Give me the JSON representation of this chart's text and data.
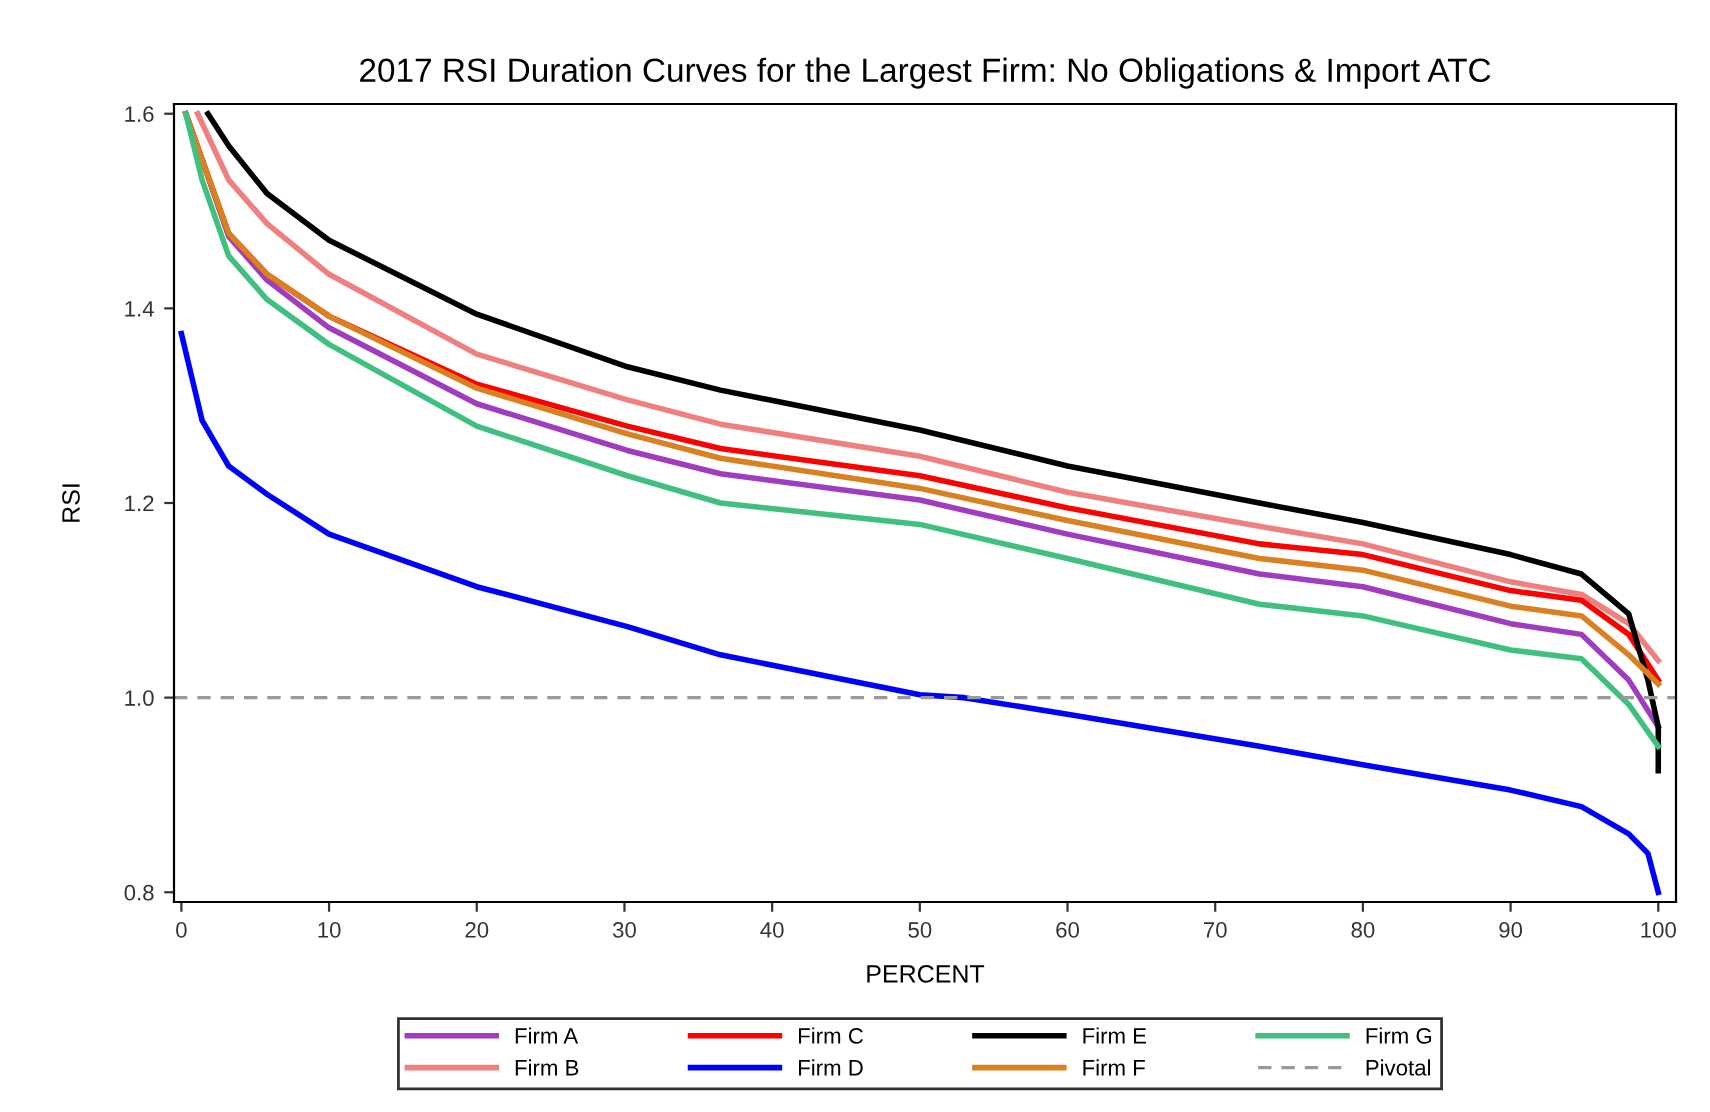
{
  "chart_data": {
    "type": "line",
    "title": "2017 RSI Duration Curves for the Largest Firm: No Obligations & Import ATC",
    "xlabel": "PERCENT",
    "ylabel": "RSI",
    "xlim": [
      -0.5,
      101.2
    ],
    "ylim": [
      0.79,
      1.61
    ],
    "xticks": [
      0,
      10,
      20,
      30,
      40,
      50,
      60,
      70,
      80,
      90,
      100
    ],
    "yticks": [
      0.8,
      {
        "value": 1.0,
        "label": "1.0"
      },
      1.2,
      1.4,
      1.6
    ],
    "grid": false,
    "legend": "bottom",
    "line_style": "solid",
    "marker": "none",
    "series": [
      {
        "name": "Firm A",
        "color": "#a03cc0",
        "x": [
          0.3,
          1.4,
          3.2,
          5.8,
          10,
          20,
          30.2,
          36.5,
          50,
          60,
          73,
          80,
          90,
          94.8,
          98,
          100
        ],
        "values": [
          1.6,
          1.553,
          1.474,
          1.429,
          1.38,
          1.302,
          1.254,
          1.23,
          1.203,
          1.168,
          1.127,
          1.114,
          1.076,
          1.065,
          1.018,
          0.97
        ]
      },
      {
        "name": "Firm B",
        "color": "#f08080",
        "x": [
          1.1,
          3.2,
          5.8,
          10,
          20,
          30.2,
          36.5,
          50,
          60,
          73,
          80,
          90,
          94.8,
          98,
          100
        ],
        "values": [
          1.6,
          1.532,
          1.487,
          1.435,
          1.353,
          1.306,
          1.281,
          1.248,
          1.211,
          1.176,
          1.158,
          1.119,
          1.106,
          1.076,
          1.038
        ]
      },
      {
        "name": "Firm C",
        "color": "#ff0000",
        "x": [
          0.3,
          1.4,
          3.2,
          5.8,
          10,
          20,
          30.2,
          36.5,
          50,
          60,
          73,
          80,
          90,
          94.8,
          98,
          100
        ],
        "values": [
          1.6,
          1.553,
          1.477,
          1.435,
          1.392,
          1.322,
          1.279,
          1.256,
          1.228,
          1.195,
          1.158,
          1.147,
          1.11,
          1.1,
          1.065,
          1.018
        ]
      },
      {
        "name": "Firm D",
        "color": "#0000ff",
        "x": [
          0,
          1.4,
          3.2,
          5.8,
          10,
          20,
          30.2,
          36.5,
          50,
          53,
          60,
          73,
          80,
          90,
          94.8,
          98,
          99.3,
          100
        ],
        "values": [
          1.374,
          1.285,
          1.238,
          1.209,
          1.168,
          1.114,
          1.073,
          1.044,
          1.003,
          1.0,
          0.983,
          0.95,
          0.931,
          0.905,
          0.888,
          0.86,
          0.84,
          0.8
        ]
      },
      {
        "name": "Firm E",
        "color": "#000000",
        "x": [
          1.8,
          3.2,
          5.8,
          10,
          20,
          30.2,
          36.5,
          50,
          60,
          73,
          80,
          90,
          94.8,
          98,
          99.3,
          100,
          100
        ],
        "values": [
          1.6,
          1.567,
          1.518,
          1.47,
          1.394,
          1.34,
          1.316,
          1.275,
          1.238,
          1.2,
          1.18,
          1.147,
          1.127,
          1.086,
          1.018,
          0.97,
          0.925
        ]
      },
      {
        "name": "Firm F",
        "color": "#d98020",
        "x": [
          0.3,
          1.4,
          3.2,
          5.8,
          10,
          20,
          30.2,
          36.5,
          50,
          60,
          73,
          80,
          90,
          94.8,
          98,
          100
        ],
        "values": [
          1.6,
          1.553,
          1.477,
          1.435,
          1.392,
          1.318,
          1.271,
          1.246,
          1.215,
          1.182,
          1.143,
          1.131,
          1.094,
          1.084,
          1.044,
          1.014
        ]
      },
      {
        "name": "Firm G",
        "color": "#40c080",
        "x": [
          0.3,
          1.4,
          3.2,
          5.8,
          10,
          20,
          30.2,
          36.5,
          50,
          60,
          73,
          80,
          90,
          94.8,
          98,
          100
        ],
        "values": [
          1.6,
          1.532,
          1.454,
          1.409,
          1.363,
          1.279,
          1.228,
          1.2,
          1.178,
          1.143,
          1.096,
          1.084,
          1.049,
          1.04,
          0.993,
          0.95
        ]
      }
    ],
    "ref_lines": [
      {
        "axis": "y",
        "value": 1.0,
        "label": "Pivotal",
        "color": "#999999",
        "line_style": "dashed"
      }
    ]
  }
}
